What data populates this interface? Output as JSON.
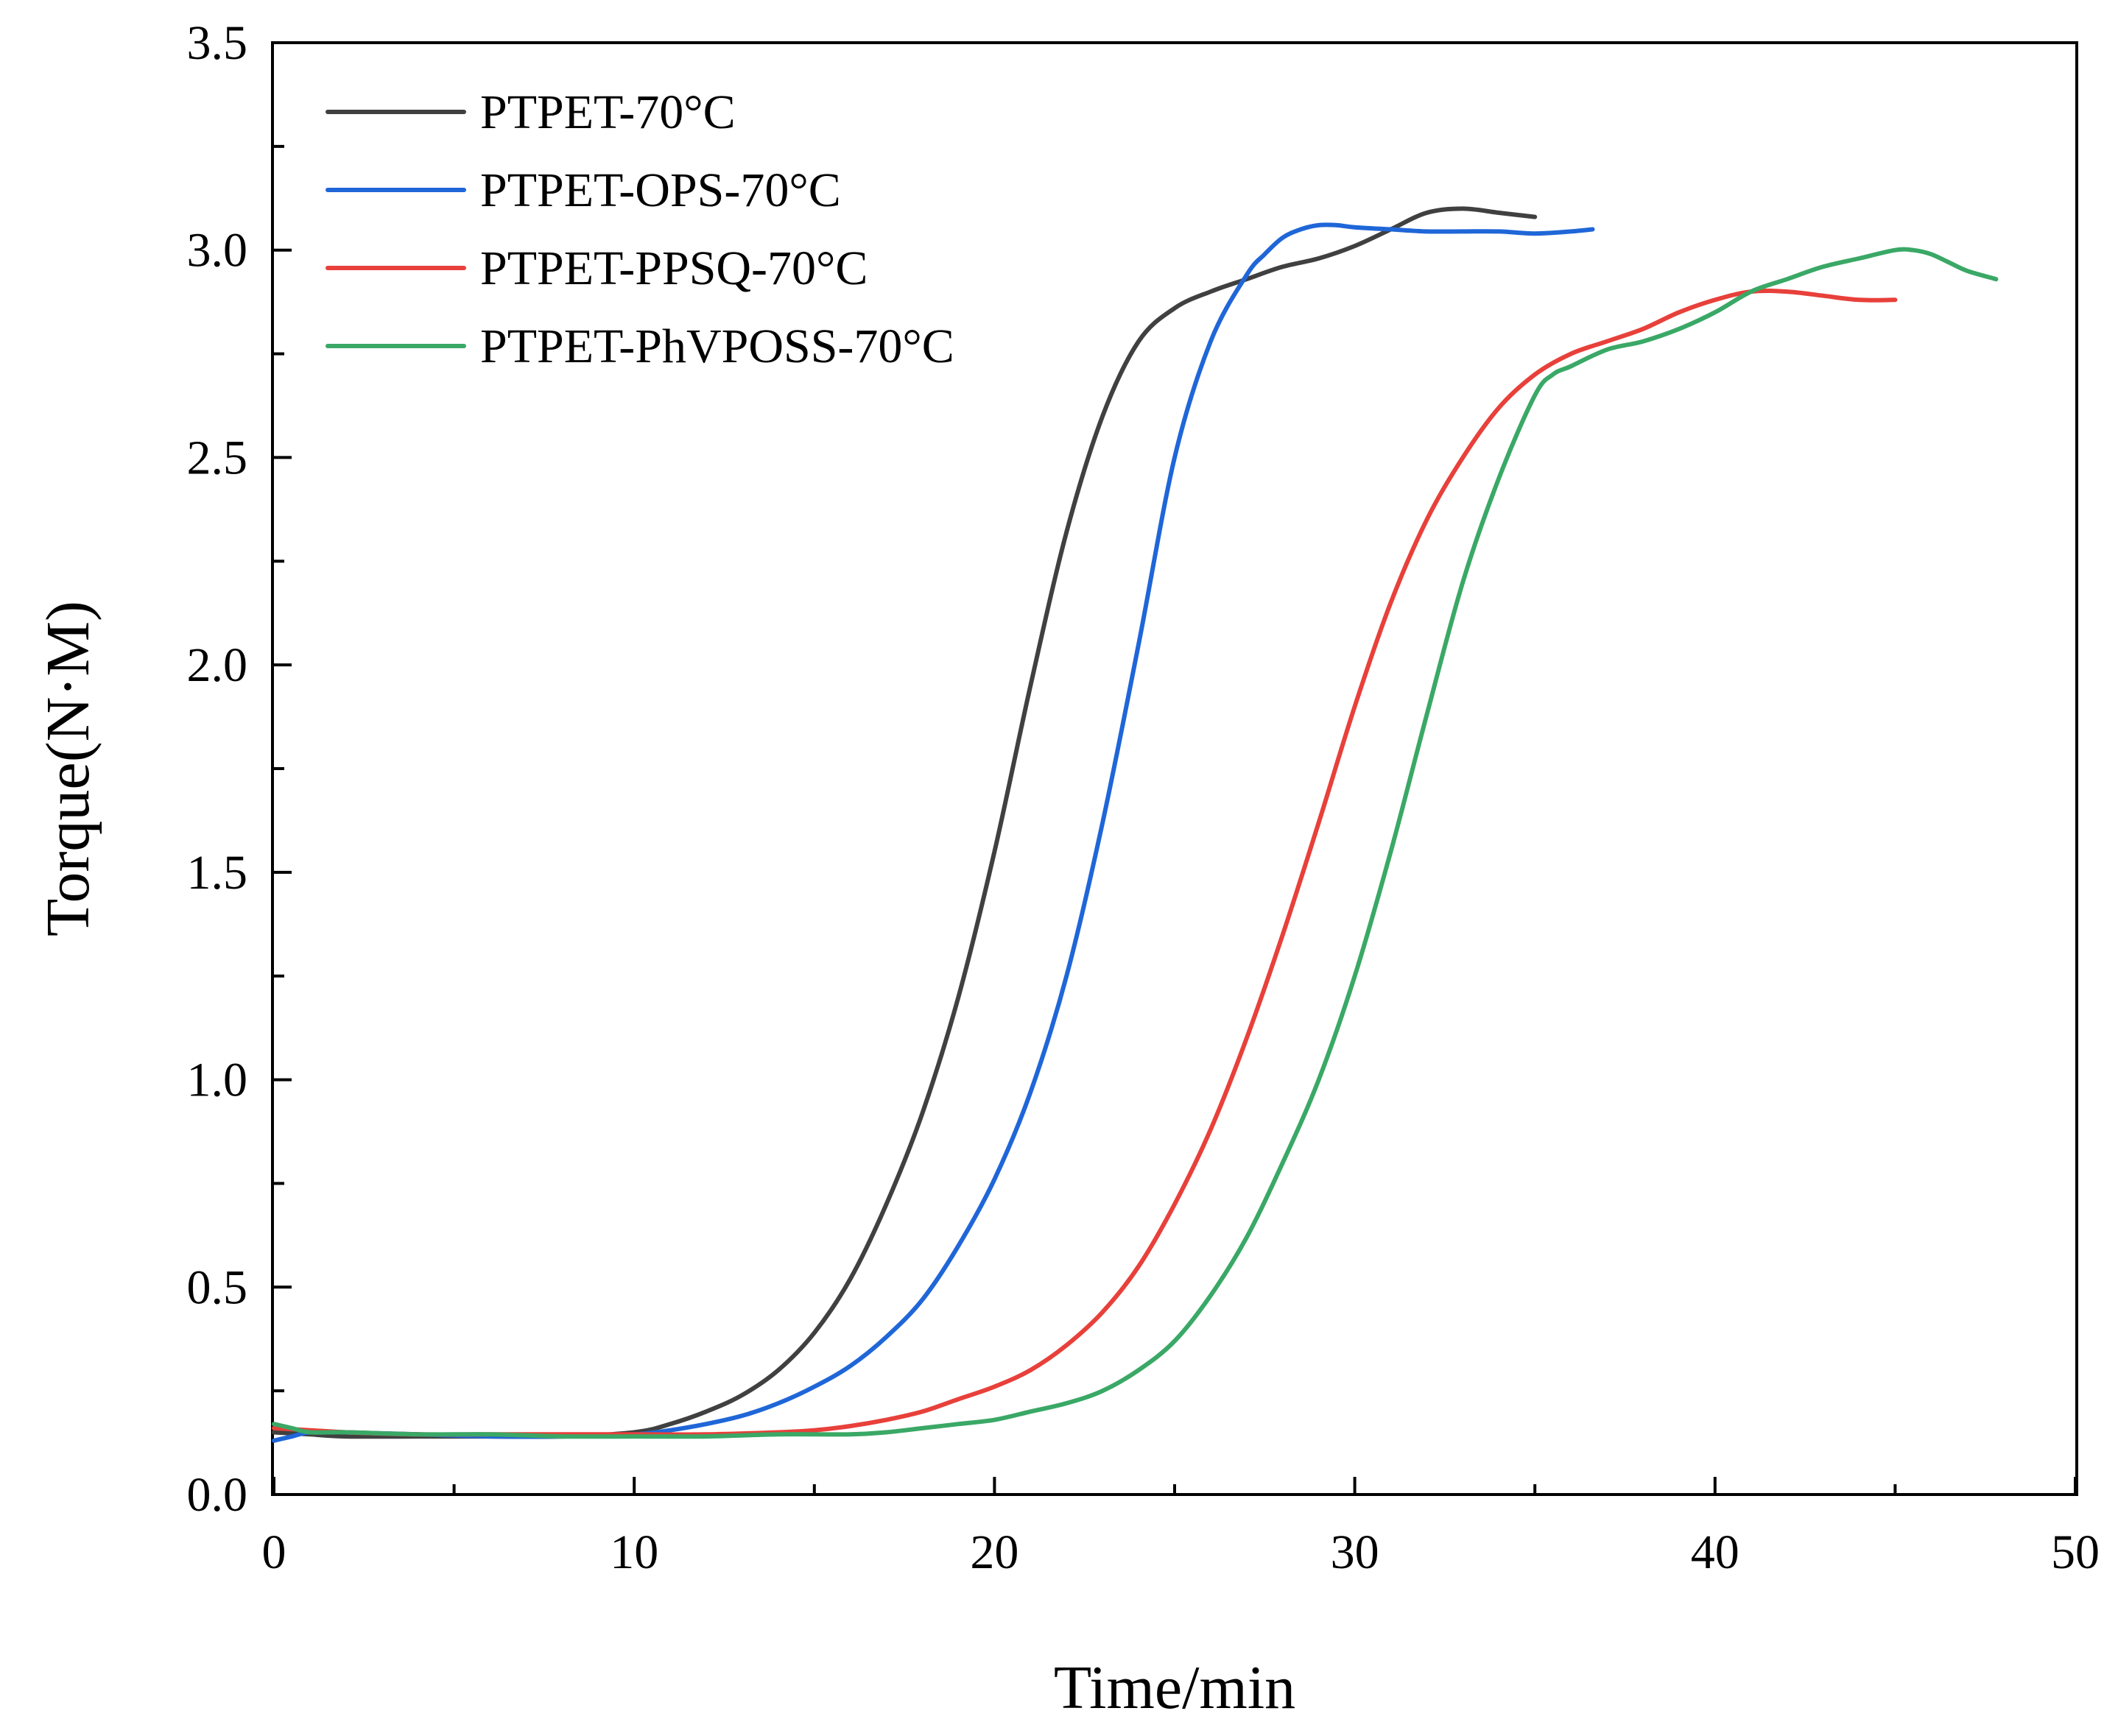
{
  "chart_data": {
    "type": "line",
    "title": "",
    "xlabel": "Time/min",
    "ylabel": "Torque(N·M)",
    "xlim": [
      0,
      50
    ],
    "ylim": [
      0,
      3.5
    ],
    "xticks": [
      0,
      10,
      20,
      30,
      40,
      50
    ],
    "xtick_labels": [
      "0",
      "10",
      "20",
      "30",
      "40",
      "50"
    ],
    "yticks": [
      0,
      0.5,
      1.0,
      1.5,
      2.0,
      2.5,
      3.0,
      3.5
    ],
    "ytick_labels": [
      "0.0",
      "0.5",
      "1.0",
      "1.5",
      "2.0",
      "2.5",
      "3.0",
      "3.5"
    ],
    "grid": false,
    "legend_position": "top-left",
    "series": [
      {
        "name": "PTPET-70°C",
        "color": "#404040",
        "x": [
          0,
          1,
          2,
          4,
          6,
          8,
          10,
          11,
          12,
          13,
          14,
          15,
          16,
          17,
          18,
          19,
          20,
          21,
          22,
          23,
          24,
          25,
          26,
          27,
          28,
          29,
          30,
          31,
          32,
          33,
          34,
          35
        ],
        "y": [
          0.15,
          0.145,
          0.14,
          0.14,
          0.14,
          0.14,
          0.15,
          0.17,
          0.2,
          0.24,
          0.3,
          0.39,
          0.52,
          0.7,
          0.92,
          1.2,
          1.55,
          1.95,
          2.32,
          2.6,
          2.78,
          2.86,
          2.9,
          2.93,
          2.96,
          2.98,
          3.01,
          3.05,
          3.09,
          3.1,
          3.09,
          3.08
        ]
      },
      {
        "name": "PTPET-OPS-70°C",
        "color": "#1f66d8",
        "x": [
          0,
          0.5,
          1,
          2,
          4,
          6,
          8,
          10,
          11,
          12,
          13,
          14,
          15,
          16,
          17,
          18,
          19,
          20,
          21,
          22,
          23,
          24,
          25,
          26,
          27,
          27.5,
          28,
          28.5,
          29,
          29.5,
          30,
          31,
          32,
          33,
          34,
          35,
          36,
          36.6
        ],
        "y": [
          0.13,
          0.14,
          0.15,
          0.15,
          0.145,
          0.14,
          0.14,
          0.145,
          0.155,
          0.17,
          0.19,
          0.22,
          0.26,
          0.31,
          0.38,
          0.47,
          0.6,
          0.76,
          0.97,
          1.25,
          1.62,
          2.05,
          2.5,
          2.78,
          2.94,
          2.99,
          3.03,
          3.05,
          3.06,
          3.06,
          3.055,
          3.05,
          3.045,
          3.045,
          3.045,
          3.04,
          3.045,
          3.05
        ]
      },
      {
        "name": "PTPET-PPSQ-70°C",
        "color": "#e8403a",
        "x": [
          0,
          1,
          2,
          4,
          6,
          8,
          10,
          12,
          14,
          15,
          16,
          17,
          18,
          19,
          20,
          21,
          22,
          23,
          24,
          25,
          26,
          27,
          28,
          29,
          30,
          31,
          32,
          33,
          34,
          35,
          36,
          37,
          38,
          39,
          40,
          41,
          42,
          43,
          44,
          45
        ],
        "y": [
          0.16,
          0.155,
          0.15,
          0.145,
          0.145,
          0.145,
          0.145,
          0.145,
          0.15,
          0.155,
          0.165,
          0.18,
          0.2,
          0.23,
          0.26,
          0.3,
          0.36,
          0.44,
          0.55,
          0.7,
          0.88,
          1.1,
          1.35,
          1.62,
          1.9,
          2.15,
          2.35,
          2.5,
          2.62,
          2.7,
          2.75,
          2.78,
          2.81,
          2.85,
          2.88,
          2.9,
          2.9,
          2.89,
          2.88,
          2.88
        ]
      },
      {
        "name": "PTPET-PhVPOSS-70°C",
        "color": "#3aa866",
        "x": [
          0,
          0.5,
          1,
          2,
          4,
          6,
          8,
          10,
          12,
          14,
          16,
          17,
          18,
          19,
          20,
          21,
          22,
          23,
          24,
          25,
          26,
          27,
          28,
          29,
          30,
          31,
          32,
          33,
          34,
          35,
          35.5,
          36,
          37,
          38,
          39,
          40,
          41,
          42,
          43,
          44,
          45,
          45.5,
          46,
          46.5,
          47,
          47.8
        ],
        "y": [
          0.17,
          0.16,
          0.15,
          0.15,
          0.145,
          0.145,
          0.14,
          0.14,
          0.14,
          0.145,
          0.145,
          0.15,
          0.16,
          0.17,
          0.18,
          0.2,
          0.22,
          0.25,
          0.3,
          0.37,
          0.48,
          0.62,
          0.8,
          1.0,
          1.25,
          1.55,
          1.88,
          2.2,
          2.45,
          2.65,
          2.7,
          2.72,
          2.76,
          2.78,
          2.81,
          2.85,
          2.9,
          2.93,
          2.96,
          2.98,
          3.0,
          3.0,
          2.99,
          2.97,
          2.95,
          2.93
        ]
      }
    ]
  }
}
